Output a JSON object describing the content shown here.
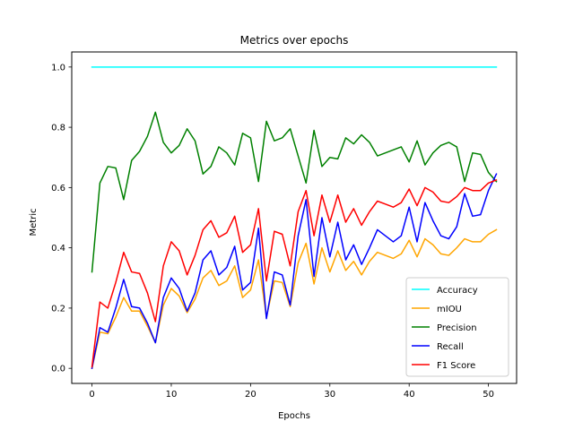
{
  "chart_data": {
    "type": "line",
    "title": "Metrics over epochs",
    "xlabel": "Epochs",
    "ylabel": "Metric",
    "xlim": [
      -2.55,
      53.55
    ],
    "ylim": [
      -0.05,
      1.05
    ],
    "xticks": [
      0,
      10,
      20,
      30,
      40,
      50
    ],
    "yticks": [
      0.0,
      0.2,
      0.4,
      0.6,
      0.8,
      1.0
    ],
    "ytick_labels": [
      "0.0",
      "0.2",
      "0.4",
      "0.6",
      "0.8",
      "1.0"
    ],
    "grid": false,
    "legend_position": "lower right",
    "x": [
      0,
      1,
      2,
      3,
      4,
      5,
      6,
      7,
      8,
      9,
      10,
      11,
      12,
      13,
      14,
      15,
      16,
      17,
      18,
      19,
      20,
      21,
      22,
      23,
      24,
      25,
      26,
      27,
      28,
      29,
      30,
      31,
      32,
      33,
      34,
      35,
      36,
      37,
      38,
      39,
      40,
      41,
      42,
      43,
      44,
      45,
      46,
      47,
      48,
      49,
      50,
      51
    ],
    "series": [
      {
        "name": "Accuracy",
        "color": "#00ffff",
        "values": [
          1.0,
          1.0,
          1.0,
          1.0,
          1.0,
          1.0,
          1.0,
          1.0,
          1.0,
          1.0,
          1.0,
          1.0,
          1.0,
          1.0,
          1.0,
          1.0,
          1.0,
          1.0,
          1.0,
          1.0,
          1.0,
          1.0,
          1.0,
          1.0,
          1.0,
          1.0,
          1.0,
          1.0,
          1.0,
          1.0,
          1.0,
          1.0,
          1.0,
          1.0,
          1.0,
          1.0,
          1.0,
          1.0,
          1.0,
          1.0,
          1.0,
          1.0,
          1.0,
          1.0,
          1.0,
          1.0,
          1.0,
          1.0,
          1.0,
          1.0,
          1.0,
          1.0
        ]
      },
      {
        "name": "mIOU",
        "color": "#ffa500",
        "values": [
          0.0,
          0.12,
          0.115,
          0.17,
          0.235,
          0.19,
          0.19,
          0.14,
          0.085,
          0.21,
          0.265,
          0.24,
          0.185,
          0.23,
          0.3,
          0.325,
          0.275,
          0.29,
          0.34,
          0.235,
          0.26,
          0.36,
          0.17,
          0.29,
          0.285,
          0.205,
          0.35,
          0.415,
          0.28,
          0.4,
          0.32,
          0.39,
          0.325,
          0.355,
          0.31,
          0.355,
          0.385,
          0.375,
          0.365,
          0.38,
          0.425,
          0.37,
          0.43,
          0.41,
          0.38,
          0.375,
          0.4,
          0.43,
          0.42,
          0.42,
          0.445,
          0.46
        ]
      },
      {
        "name": "Precision",
        "color": "#008000",
        "values": [
          0.32,
          0.615,
          0.67,
          0.665,
          0.56,
          0.69,
          0.72,
          0.77,
          0.85,
          0.75,
          0.715,
          0.74,
          0.795,
          0.755,
          0.645,
          0.67,
          0.735,
          0.715,
          0.675,
          0.78,
          0.765,
          0.62,
          0.82,
          0.755,
          0.765,
          0.795,
          0.705,
          0.615,
          0.79,
          0.67,
          0.7,
          0.695,
          0.765,
          0.745,
          0.775,
          0.75,
          0.705,
          0.715,
          0.725,
          0.735,
          0.685,
          0.755,
          0.675,
          0.715,
          0.74,
          0.75,
          0.735,
          0.62,
          0.715,
          0.71,
          0.65,
          0.62
        ]
      },
      {
        "name": "Recall",
        "color": "#0000ff",
        "values": [
          0.0,
          0.135,
          0.12,
          0.2,
          0.295,
          0.205,
          0.2,
          0.15,
          0.085,
          0.235,
          0.3,
          0.265,
          0.19,
          0.25,
          0.36,
          0.39,
          0.31,
          0.335,
          0.405,
          0.26,
          0.285,
          0.465,
          0.165,
          0.32,
          0.31,
          0.21,
          0.44,
          0.56,
          0.305,
          0.5,
          0.37,
          0.485,
          0.36,
          0.41,
          0.345,
          0.4,
          0.46,
          0.44,
          0.42,
          0.44,
          0.535,
          0.42,
          0.55,
          0.49,
          0.44,
          0.43,
          0.47,
          0.58,
          0.505,
          0.51,
          0.59,
          0.645
        ]
      },
      {
        "name": "F1 Score",
        "color": "#ff0000",
        "values": [
          0.005,
          0.22,
          0.2,
          0.285,
          0.385,
          0.32,
          0.315,
          0.25,
          0.155,
          0.34,
          0.42,
          0.39,
          0.31,
          0.375,
          0.46,
          0.49,
          0.435,
          0.45,
          0.505,
          0.385,
          0.41,
          0.53,
          0.29,
          0.455,
          0.445,
          0.34,
          0.52,
          0.59,
          0.44,
          0.575,
          0.485,
          0.575,
          0.485,
          0.53,
          0.475,
          0.52,
          0.555,
          0.545,
          0.535,
          0.55,
          0.595,
          0.54,
          0.6,
          0.585,
          0.555,
          0.55,
          0.57,
          0.6,
          0.59,
          0.59,
          0.615,
          0.625
        ]
      }
    ]
  }
}
